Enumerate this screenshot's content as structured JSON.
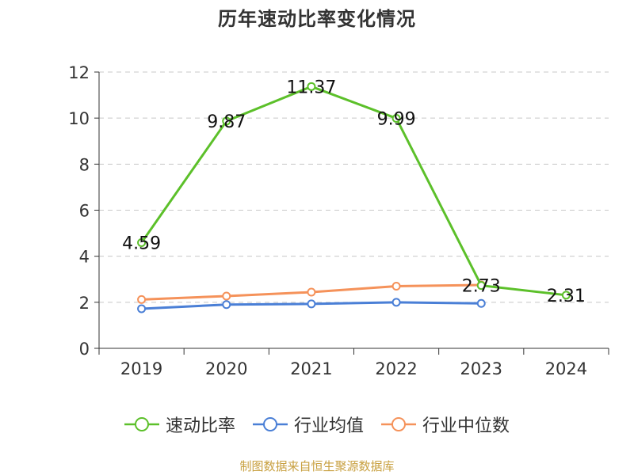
{
  "chart_data": {
    "type": "line",
    "title": "历年速动比率变化情况",
    "categories": [
      "2019",
      "2020",
      "2021",
      "2022",
      "2023",
      "2024"
    ],
    "ylim": [
      0,
      12
    ],
    "yticks": [
      0,
      2,
      4,
      6,
      8,
      10,
      12
    ],
    "grid": true,
    "legend_position": "bottom",
    "series": [
      {
        "name": "速动比率",
        "color": "#5cc02a",
        "values": [
          4.59,
          9.87,
          11.37,
          9.99,
          2.73,
          2.31
        ],
        "labels": [
          "4.59",
          "9.87",
          "11.37",
          "9.99",
          "2.73",
          "2.31"
        ]
      },
      {
        "name": "行业均值",
        "color": "#4a7fd6",
        "values": [
          1.72,
          1.9,
          1.93,
          2.0,
          1.95,
          null
        ]
      },
      {
        "name": "行业中位数",
        "color": "#f5925a",
        "values": [
          2.12,
          2.27,
          2.44,
          2.7,
          2.75,
          null
        ]
      }
    ],
    "source": "制图数据来自恒生聚源数据库"
  }
}
